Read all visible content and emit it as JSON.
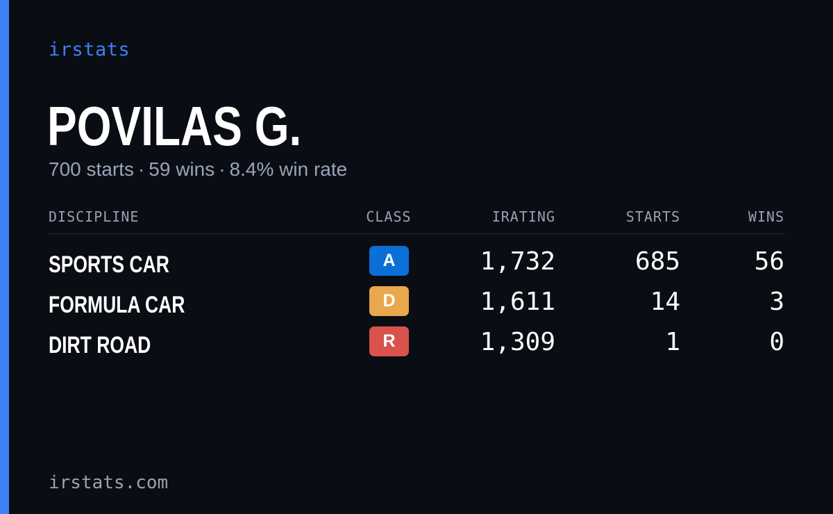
{
  "brand": "irstats",
  "driver": {
    "name": "POVILAS G.",
    "summary": {
      "starts": "700 starts",
      "wins": "59 wins",
      "win_rate": "8.4% win rate",
      "separator": "·"
    }
  },
  "table": {
    "headers": {
      "discipline": "DISCIPLINE",
      "class": "CLASS",
      "irating": "IRATING",
      "starts": "STARTS",
      "wins": "WINS"
    },
    "rows": [
      {
        "discipline": "SPORTS CAR",
        "class": "A",
        "class_color": "#0b6fd6",
        "irating": "1,732",
        "starts": "685",
        "wins": "56"
      },
      {
        "discipline": "FORMULA CAR",
        "class": "D",
        "class_color": "#e9a84c",
        "irating": "1,611",
        "starts": "14",
        "wins": "3"
      },
      {
        "discipline": "DIRT ROAD",
        "class": "R",
        "class_color": "#d9524c",
        "irating": "1,309",
        "starts": "1",
        "wins": "0"
      }
    ]
  },
  "footer": {
    "url": "irstats.com"
  },
  "colors": {
    "accent": "#3b82f6",
    "background": "#0a0d14",
    "muted_text": "#98a2b3"
  }
}
